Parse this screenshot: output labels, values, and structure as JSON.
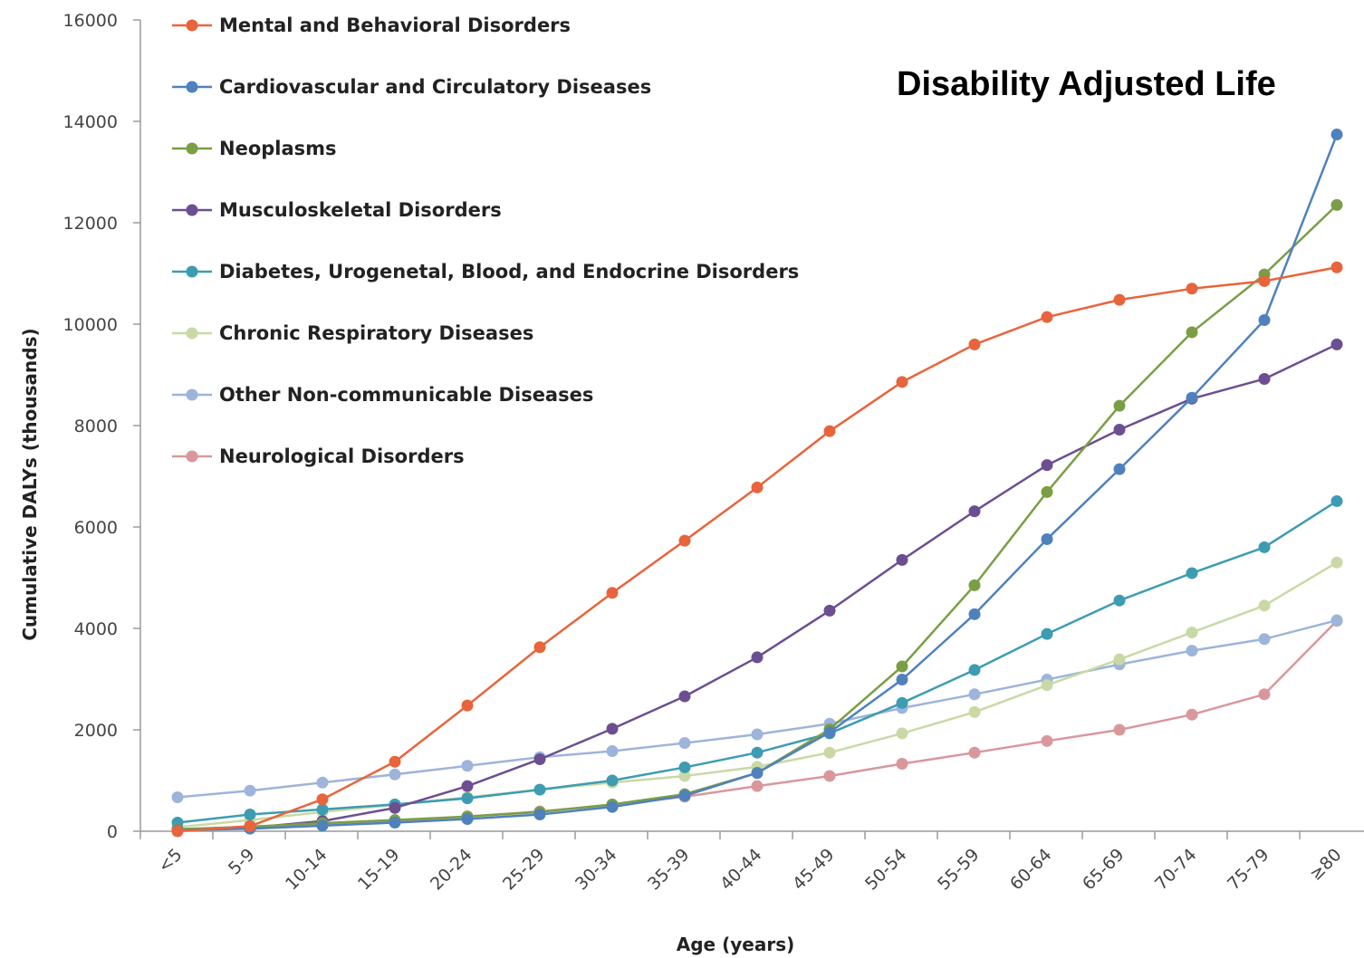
{
  "chart_data": {
    "type": "line",
    "title": "Disability Adjusted Life",
    "xlabel": "Age (years)",
    "ylabel": "Cumulative DALYs (thousands)",
    "ylim": [
      0,
      16000
    ],
    "yticks": [
      "0",
      "2000",
      "4000",
      "6000",
      "8000",
      "10000",
      "12000",
      "14000",
      "16000"
    ],
    "grid": false,
    "legend_position": "top-left",
    "categories": [
      "<5",
      "5-9",
      "10-14",
      "15-19",
      "20-24",
      "25-29",
      "30-34",
      "35-39",
      "40-44",
      "45-49",
      "50-54",
      "55-59",
      "60-64",
      "65-69",
      "70-74",
      "75-79",
      "≥80"
    ],
    "series": [
      {
        "name": "Mental and Behavioral Disorders",
        "color": "#e8643c",
        "values": [
          0,
          100,
          630,
          1370,
          2480,
          3630,
          4700,
          5730,
          6780,
          7890,
          8860,
          9600,
          10140,
          10480,
          10700,
          10850,
          11120
        ]
      },
      {
        "name": "Cardiovascular and Circulatory Diseases",
        "color": "#4f81bd",
        "values": [
          20,
          50,
          110,
          170,
          240,
          330,
          480,
          700,
          1150,
          1950,
          2990,
          4280,
          5760,
          7140,
          8550,
          10080,
          13740
        ]
      },
      {
        "name": "Neoplasms",
        "color": "#7a9e45",
        "values": [
          40,
          90,
          160,
          220,
          290,
          380,
          530,
          730,
          1150,
          2010,
          3250,
          4850,
          6690,
          8390,
          9840,
          10980,
          12350
        ]
      },
      {
        "name": "Musculoskeletal Disorders",
        "color": "#6b4f91",
        "values": [
          20,
          70,
          200,
          460,
          890,
          1420,
          2020,
          2660,
          3430,
          4350,
          5350,
          6310,
          7220,
          7920,
          8530,
          8920,
          9600
        ]
      },
      {
        "name": "Diabetes, Urogenetal, Blood, and Endocrine Disorders",
        "color": "#3d9cb2",
        "values": [
          170,
          330,
          430,
          530,
          650,
          820,
          1000,
          1260,
          1550,
          1930,
          2530,
          3180,
          3890,
          4550,
          5090,
          5600,
          6510
        ]
      },
      {
        "name": "Chronic Respiratory Diseases",
        "color": "#c9d9a5",
        "values": [
          80,
          220,
          380,
          520,
          670,
          820,
          960,
          1090,
          1270,
          1550,
          1930,
          2350,
          2880,
          3390,
          3920,
          4450,
          5300
        ]
      },
      {
        "name": "Other Non-communicable Diseases",
        "color": "#9db4db",
        "values": [
          670,
          800,
          960,
          1120,
          1290,
          1460,
          1580,
          1740,
          1910,
          2120,
          2430,
          2700,
          2990,
          3290,
          3560,
          3790,
          4160
        ]
      },
      {
        "name": "Neurological Disorders",
        "color": "#d9979c",
        "values": [
          30,
          90,
          140,
          200,
          290,
          390,
          520,
          680,
          890,
          1090,
          1330,
          1550,
          1780,
          2000,
          2300,
          2700,
          4150
        ]
      }
    ]
  }
}
